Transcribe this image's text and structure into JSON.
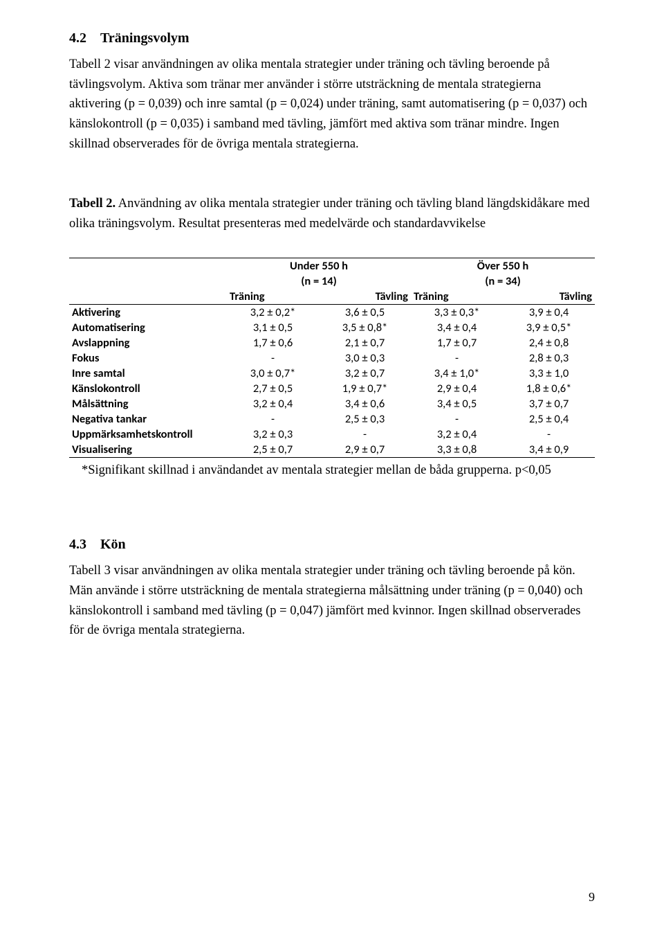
{
  "section42": {
    "number": "4.2",
    "title": "Träningsvolym",
    "para1": "Tabell 2 visar användningen av olika mentala strategier under träning och tävling beroende på tävlingsvolym.",
    "para2": "Aktiva som tränar mer använder i större utsträckning de mentala strategierna aktivering (p = 0,039) och inre samtal (p = 0,024) under träning, samt automatisering (p = 0,037) och känslokontroll (p = 0,035) i samband med tävling, jämfört med aktiva som tränar mindre. Ingen skillnad observerades för de övriga mentala strategierna."
  },
  "table2": {
    "caption_lead": "Tabell 2.",
    "caption_rest": " Användning av olika mentala strategier under träning och tävling bland längdskidåkare med olika träningsvolym. Resultat presenteras med medelvärde och standardavvikelse",
    "group1_label": "Under 550 h",
    "group1_n": "(n = 14)",
    "group2_label": "Över 550 h",
    "group2_n": "(n = 34)",
    "col_training": "Träning",
    "col_competition": "Tävling",
    "rows": [
      {
        "label": "Aktivering",
        "v": [
          "3,2 ± 0,2*",
          "3,6 ± 0,5",
          "3,3 ± 0,3*",
          "3,9 ± 0,4"
        ]
      },
      {
        "label": "Automatisering",
        "v": [
          "3,1 ± 0,5",
          "3,5 ± 0,8*",
          "3,4 ± 0,4",
          "3,9 ± 0,5*"
        ]
      },
      {
        "label": "Avslappning",
        "v": [
          "1,7 ± 0,6",
          "2,1 ± 0,7",
          "1,7 ± 0,7",
          "2,4 ± 0,8"
        ]
      },
      {
        "label": "Fokus",
        "v": [
          "-",
          "3,0 ± 0,3",
          "-",
          "2,8 ± 0,3"
        ]
      },
      {
        "label": "Inre samtal",
        "v": [
          "3,0 ± 0,7*",
          "3,2 ± 0,7",
          "3,4 ± 1,0*",
          "3,3 ± 1,0"
        ]
      },
      {
        "label": "Känslokontroll",
        "v": [
          "2,7 ± 0,5",
          "1,9 ± 0,7*",
          "2,9 ± 0,4",
          "1,8 ± 0,6*"
        ]
      },
      {
        "label": "Målsättning",
        "v": [
          "3,2 ± 0,4",
          "3,4 ± 0,6",
          "3,4 ± 0,5",
          "3,7 ± 0,7"
        ]
      },
      {
        "label": "Negativa tankar",
        "v": [
          "-",
          "2,5 ± 0,3",
          "-",
          "2,5 ± 0,4"
        ]
      },
      {
        "label": "Uppmärksamhetskontroll",
        "v": [
          "3,2 ± 0,3",
          "-",
          "3,2 ± 0,4",
          "-"
        ]
      },
      {
        "label": "Visualisering",
        "v": [
          "2,5 ± 0,7",
          "2,9 ± 0,7",
          "3,3 ± 0,8",
          "3,4 ± 0,9"
        ]
      }
    ],
    "footnote": "*Signifikant skillnad i användandet av mentala strategier mellan de båda grupperna. p<0,05"
  },
  "section43": {
    "number": "4.3",
    "title": "Kön",
    "para": "Tabell 3 visar användningen av olika mentala strategier under träning och tävling beroende på kön. Män använde i större utsträckning de mentala strategierna målsättning under träning (p = 0,040) och känslokontroll i samband med tävling (p = 0,047) jämfört med kvinnor. Ingen skillnad observerades för de övriga mentala strategierna."
  },
  "page_number": "9"
}
